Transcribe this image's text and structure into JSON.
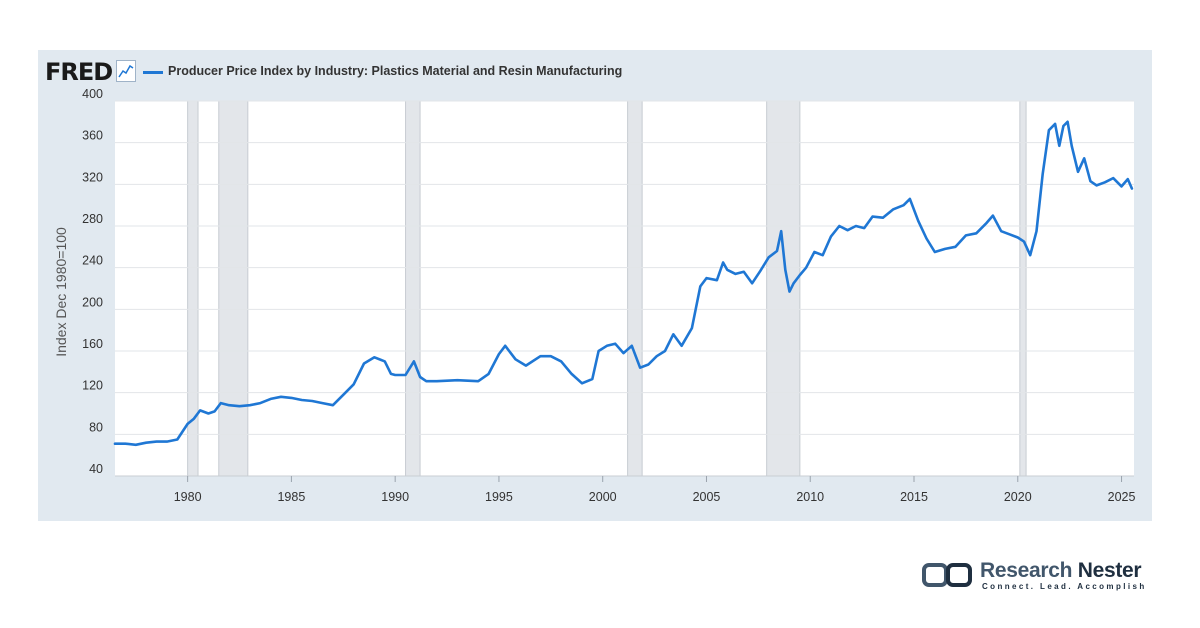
{
  "logo": {
    "text": "FRED"
  },
  "legend": {
    "label": "Producer Price Index by Industry: Plastics Material and Resin Manufacturing",
    "color": "#1f77d4"
  },
  "brand": {
    "name_part1": "Research",
    "name_part2": "Nester",
    "tagline": "Connect. Lead. Accomplish"
  },
  "chart_data": {
    "type": "line",
    "title": "Producer Price Index by Industry: Plastics Material and Resin Manufacturing",
    "ylabel": "Index Dec 1980=100",
    "xlabel": "",
    "xlim": [
      1976.5,
      2025.6
    ],
    "ylim": [
      40,
      400
    ],
    "yticks": [
      40,
      80,
      120,
      160,
      200,
      240,
      280,
      320,
      360,
      400
    ],
    "xticks": [
      1980,
      1985,
      1990,
      1995,
      2000,
      2005,
      2010,
      2015,
      2020,
      2025
    ],
    "grid": true,
    "recessions": [
      [
        1980.0,
        1980.5
      ],
      [
        1981.5,
        1982.9
      ],
      [
        1990.5,
        1991.2
      ],
      [
        2001.2,
        2001.9
      ],
      [
        2007.9,
        2009.5
      ],
      [
        2020.1,
        2020.4
      ]
    ],
    "series": [
      {
        "name": "Producer Price Index by Industry: Plastics Material and Resin Manufacturing",
        "color": "#1f77d4",
        "x": [
          1976.5,
          1977.0,
          1977.5,
          1978.0,
          1978.5,
          1979.0,
          1979.5,
          1980.0,
          1980.3,
          1980.6,
          1981.0,
          1981.3,
          1981.6,
          1982.0,
          1982.5,
          1983.0,
          1983.5,
          1984.0,
          1984.5,
          1985.0,
          1985.5,
          1986.0,
          1986.5,
          1987.0,
          1987.5,
          1988.0,
          1988.5,
          1989.0,
          1989.5,
          1989.8,
          1990.0,
          1990.5,
          1990.9,
          1991.2,
          1991.5,
          1992.0,
          1993.0,
          1994.0,
          1994.5,
          1995.0,
          1995.3,
          1995.8,
          1996.3,
          1997.0,
          1997.5,
          1998.0,
          1998.5,
          1999.0,
          1999.5,
          1999.8,
          2000.2,
          2000.6,
          2001.0,
          2001.4,
          2001.8,
          2002.2,
          2002.6,
          2003.0,
          2003.4,
          2003.8,
          2004.3,
          2004.7,
          2005.0,
          2005.5,
          2005.8,
          2006.0,
          2006.4,
          2006.8,
          2007.2,
          2007.6,
          2008.0,
          2008.4,
          2008.6,
          2008.8,
          2009.0,
          2009.2,
          2009.5,
          2009.8,
          2010.2,
          2010.6,
          2011.0,
          2011.4,
          2011.8,
          2012.2,
          2012.6,
          2013.0,
          2013.5,
          2014.0,
          2014.5,
          2014.8,
          2015.2,
          2015.6,
          2016.0,
          2016.5,
          2017.0,
          2017.5,
          2018.0,
          2018.5,
          2018.8,
          2019.2,
          2019.6,
          2020.0,
          2020.3,
          2020.6,
          2020.9,
          2021.2,
          2021.5,
          2021.8,
          2022.0,
          2022.2,
          2022.4,
          2022.6,
          2022.9,
          2023.2,
          2023.5,
          2023.8,
          2024.2,
          2024.6,
          2025.0,
          2025.3,
          2025.5
        ],
        "values": [
          71,
          71,
          70,
          72,
          73,
          73,
          75,
          90,
          95,
          103,
          100,
          102,
          110,
          108,
          107,
          108,
          110,
          114,
          116,
          115,
          113,
          112,
          110,
          108,
          118,
          128,
          148,
          154,
          150,
          138,
          137,
          137,
          150,
          135,
          131,
          131,
          132,
          131,
          138,
          157,
          165,
          152,
          146,
          155,
          155,
          150,
          138,
          129,
          133,
          160,
          165,
          167,
          158,
          165,
          144,
          147,
          155,
          160,
          176,
          165,
          182,
          222,
          230,
          228,
          245,
          238,
          234,
          236,
          225,
          237,
          250,
          256,
          275,
          238,
          217,
          225,
          233,
          240,
          255,
          252,
          270,
          280,
          276,
          280,
          278,
          289,
          288,
          296,
          300,
          306,
          285,
          268,
          255,
          258,
          260,
          271,
          273,
          283,
          290,
          275,
          272,
          269,
          265,
          252,
          275,
          330,
          372,
          378,
          357,
          376,
          380,
          357,
          332,
          345,
          323,
          319,
          322,
          326,
          318,
          325,
          316
        ]
      }
    ]
  }
}
